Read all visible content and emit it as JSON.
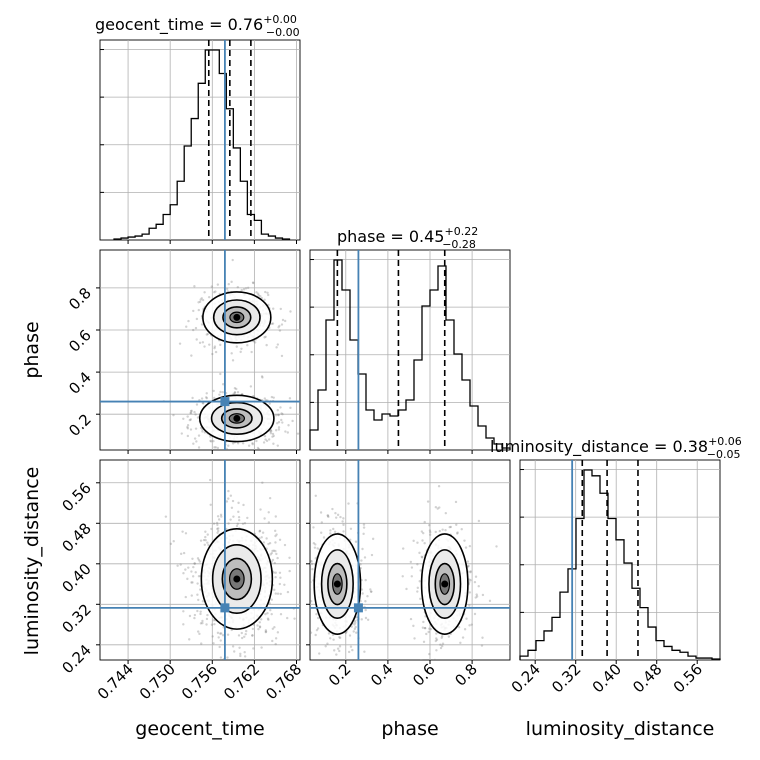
{
  "chart_data": {
    "type": "corner",
    "parameters": [
      "geocent_time",
      "phase",
      "luminosity_distance"
    ],
    "truths": {
      "geocent_time": 0.7578,
      "phase": 0.26,
      "luminosity_distance": 0.313
    },
    "ranges": {
      "geocent_time": [
        0.74,
        0.7685
      ],
      "phase": [
        0.03,
        0.98
      ],
      "luminosity_distance": [
        0.21,
        0.605
      ]
    },
    "ticks": {
      "geocent_time": {
        "values": [
          0.744,
          0.75,
          0.756,
          0.762,
          0.768
        ],
        "labels": [
          "0.744",
          "0.750",
          "0.756",
          "0.762",
          "0.768"
        ]
      },
      "phase": {
        "values": [
          0.2,
          0.4,
          0.6,
          0.8
        ],
        "labels": [
          "0.2",
          "0.4",
          "0.6",
          "0.8"
        ]
      },
      "luminosity_distance": {
        "values": [
          0.24,
          0.32,
          0.4,
          0.48,
          0.56
        ],
        "labels": [
          "0.24",
          "0.32",
          "0.40",
          "0.48",
          "0.56"
        ]
      }
    },
    "marginals": [
      {
        "parameter": "geocent_time",
        "title": {
          "main": "geocent_time = 0.76",
          "sup": "+0.00",
          "sub": "−0.00"
        },
        "quantiles": [
          0.7555,
          0.7585,
          0.7615
        ],
        "bins": [
          0.742,
          0.743,
          0.744,
          0.745,
          0.746,
          0.747,
          0.748,
          0.749,
          0.75,
          0.751,
          0.752,
          0.753,
          0.754,
          0.755,
          0.756,
          0.757,
          0.758,
          0.759,
          0.76,
          0.761,
          0.762,
          0.763,
          0.764,
          0.765,
          0.766,
          0.767
        ],
        "heights": [
          0.005,
          0.01,
          0.015,
          0.02,
          0.03,
          0.06,
          0.08,
          0.13,
          0.18,
          0.3,
          0.48,
          0.62,
          0.8,
          0.97,
          0.97,
          0.85,
          0.67,
          0.47,
          0.3,
          0.13,
          0.1,
          0.03,
          0.02,
          0.01,
          0.005
        ]
      },
      {
        "parameter": "phase",
        "title": {
          "main": "phase = 0.45",
          "sup": "+0.22",
          "sub": "−0.28"
        },
        "quantiles": [
          0.16,
          0.45,
          0.67
        ],
        "bins": [
          0.03,
          0.068,
          0.106,
          0.144,
          0.182,
          0.22,
          0.258,
          0.296,
          0.334,
          0.372,
          0.41,
          0.448,
          0.486,
          0.524,
          0.562,
          0.6,
          0.638,
          0.676,
          0.714,
          0.752,
          0.79,
          0.828,
          0.866,
          0.904,
          0.942,
          0.98
        ],
        "heights": [
          0.1,
          0.3,
          0.65,
          0.95,
          0.8,
          0.55,
          0.38,
          0.2,
          0.15,
          0.18,
          0.17,
          0.2,
          0.25,
          0.45,
          0.72,
          0.8,
          0.92,
          0.65,
          0.48,
          0.35,
          0.22,
          0.12,
          0.06,
          0.03,
          0.01
        ]
      },
      {
        "parameter": "luminosity_distance",
        "title": {
          "main": "luminosity_distance = 0.38",
          "sup": "+0.06",
          "sub": "−0.05"
        },
        "quantiles": [
          0.333,
          0.382,
          0.443
        ],
        "bins": [
          0.21,
          0.2258,
          0.2416,
          0.2574,
          0.2732,
          0.289,
          0.3048,
          0.3206,
          0.3364,
          0.3522,
          0.368,
          0.3838,
          0.3996,
          0.4154,
          0.4312,
          0.447,
          0.4628,
          0.4786,
          0.4944,
          0.5102,
          0.526,
          0.5418,
          0.5576,
          0.5734,
          0.5892,
          0.605
        ],
        "heights": [
          0.02,
          0.05,
          0.1,
          0.15,
          0.22,
          0.35,
          0.47,
          0.73,
          0.98,
          0.95,
          0.86,
          0.73,
          0.62,
          0.5,
          0.37,
          0.27,
          0.17,
          0.1,
          0.07,
          0.05,
          0.04,
          0.02,
          0.01,
          0.01,
          0.005
        ]
      }
    ],
    "joint_modes": {
      "geocent_time_phase": [
        {
          "x": 0.7595,
          "y": 0.66,
          "sx": 0.0022,
          "sy": 0.055,
          "w": 1.0
        },
        {
          "x": 0.7595,
          "y": 0.18,
          "sx": 0.0024,
          "sy": 0.05,
          "w": 1.0
        }
      ],
      "geocent_time_luminosity_distance": [
        {
          "x": 0.7595,
          "y": 0.37,
          "sx": 0.0023,
          "sy": 0.045,
          "w": 1.0
        }
      ],
      "phase_luminosity_distance": [
        {
          "x": 0.16,
          "y": 0.36,
          "sx": 0.05,
          "sy": 0.045,
          "w": 1.0
        },
        {
          "x": 0.67,
          "y": 0.36,
          "sx": 0.05,
          "sy": 0.045,
          "w": 1.0
        }
      ]
    },
    "colors": {
      "truth": "#4682b4",
      "line": "#000000",
      "grid": "#b0b0b0",
      "points": "#7f7f7f"
    },
    "grid": true
  }
}
